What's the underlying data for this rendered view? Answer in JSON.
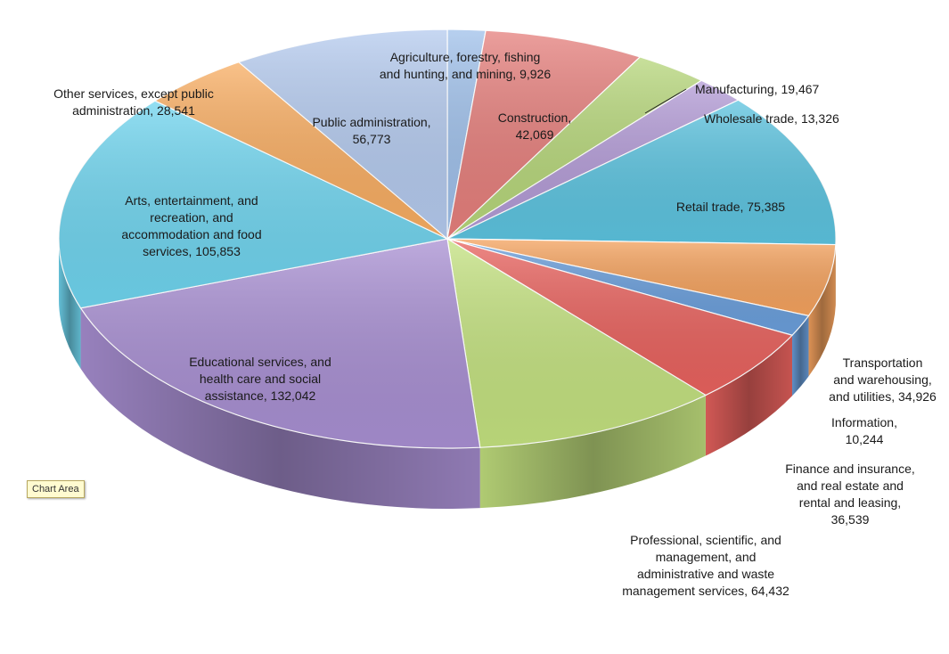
{
  "chart_data": {
    "type": "pie",
    "style": "3d",
    "slices": [
      {
        "label": "Agriculture, forestry, fishing\nand hunting, and mining, 9,926",
        "name": "Agriculture, forestry, fishing and hunting, and mining",
        "value": 9926,
        "color": "#9fc0ea"
      },
      {
        "label": "Construction,\n42,069",
        "name": "Construction",
        "value": 42069,
        "color": "#e57f7c"
      },
      {
        "label": "Manufacturing, 19,467",
        "name": "Manufacturing",
        "value": 19467,
        "color": "#b6d67a"
      },
      {
        "label": "Wholesale trade, 13,326",
        "name": "Wholesale trade",
        "value": 13326,
        "color": "#b39bd6"
      },
      {
        "label": "Retail trade, 75,385",
        "name": "Retail trade",
        "value": 75385,
        "color": "#5cc3df"
      },
      {
        "label": "Transportation\nand warehousing,\nand utilities, 34,926",
        "name": "Transportation and warehousing, and utilities",
        "value": 34926,
        "color": "#f4a25e"
      },
      {
        "label": "Information,\n10,244",
        "name": "Information",
        "value": 10244,
        "color": "#6a9edb"
      },
      {
        "label": "Finance and insurance,\nand real estate and\nrental and leasing,\n36,539",
        "name": "Finance and insurance, and real estate and rental and leasing",
        "value": 36539,
        "color": "#e8625e"
      },
      {
        "label": "Professional, scientific, and\nmanagement, and\nadministrative and waste\nmanagement services, 64,432",
        "name": "Professional, scientific, and management, and administrative and waste management services",
        "value": 64432,
        "color": "#c3e17f"
      },
      {
        "label": "Educational services, and\nhealth care and social\nassistance, 132,042",
        "name": "Educational services, and health care and social assistance",
        "value": 132042,
        "color": "#a88fd2"
      },
      {
        "label": "Arts, entertainment, and\nrecreation, and\naccommodation and food\nservices, 105,853",
        "name": "Arts, entertainment, and recreation, and accommodation and food services",
        "value": 105853,
        "color": "#6fd4ee"
      },
      {
        "label": "Other services, except public\nadministration, 28,541",
        "name": "Other services, except public administration",
        "value": 28541,
        "color": "#f8ad62"
      },
      {
        "label": "Public administration,\n56,773",
        "name": "Public administration",
        "value": 56773,
        "color": "#b4caee"
      }
    ]
  },
  "chart_area_tag": "Chart Area"
}
